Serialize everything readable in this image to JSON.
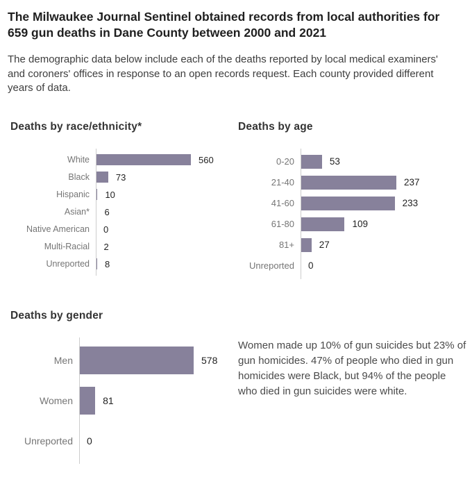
{
  "header": {
    "title": "The Milwaukee Journal Sentinel obtained records from local authorities for 659 gun deaths in Dane County between 2000 and 2021",
    "subtitle": "The demographic data below include each of the deaths reported by local medical examiners' and coroners' offices in response to an open records request. Each county provided different years of data."
  },
  "annotation": {
    "text": "Women made up 10% of gun suicides but 23% of gun homicides. 47% of people who died in gun homicides were Black, but 94% of the people who died in gun suicides were white."
  },
  "colors": {
    "bar_fill": "#87819b",
    "axis_line": "#cccccc",
    "category_label": "#757575",
    "value_label": "#222222",
    "heading": "#333333",
    "title": "#1f1f1f",
    "body_text": "#4a4a4a"
  },
  "chart_data": [
    {
      "type": "bar",
      "orientation": "horizontal",
      "title": "Deaths by race/ethnicity*",
      "categories": [
        "White",
        "Black",
        "Hispanic",
        "Asian*",
        "Native American",
        "Multi-Racial",
        "Unreported"
      ],
      "values": [
        560,
        73,
        10,
        6,
        0,
        2,
        8
      ],
      "xlim": [
        0,
        560
      ],
      "grid": false,
      "legend": "none",
      "value_labels_shown": true
    },
    {
      "type": "bar",
      "orientation": "horizontal",
      "title": "Deaths by age",
      "categories": [
        "0-20",
        "21-40",
        "41-60",
        "61-80",
        "81+",
        "Unreported"
      ],
      "values": [
        53,
        237,
        233,
        109,
        27,
        0
      ],
      "xlim": [
        0,
        237
      ],
      "grid": false,
      "legend": "none",
      "value_labels_shown": true
    },
    {
      "type": "bar",
      "orientation": "horizontal",
      "title": "Deaths by gender",
      "categories": [
        "Men",
        "Women",
        "Unreported"
      ],
      "values": [
        578,
        81,
        0
      ],
      "xlim": [
        0,
        578
      ],
      "grid": false,
      "legend": "none",
      "value_labels_shown": true
    }
  ]
}
